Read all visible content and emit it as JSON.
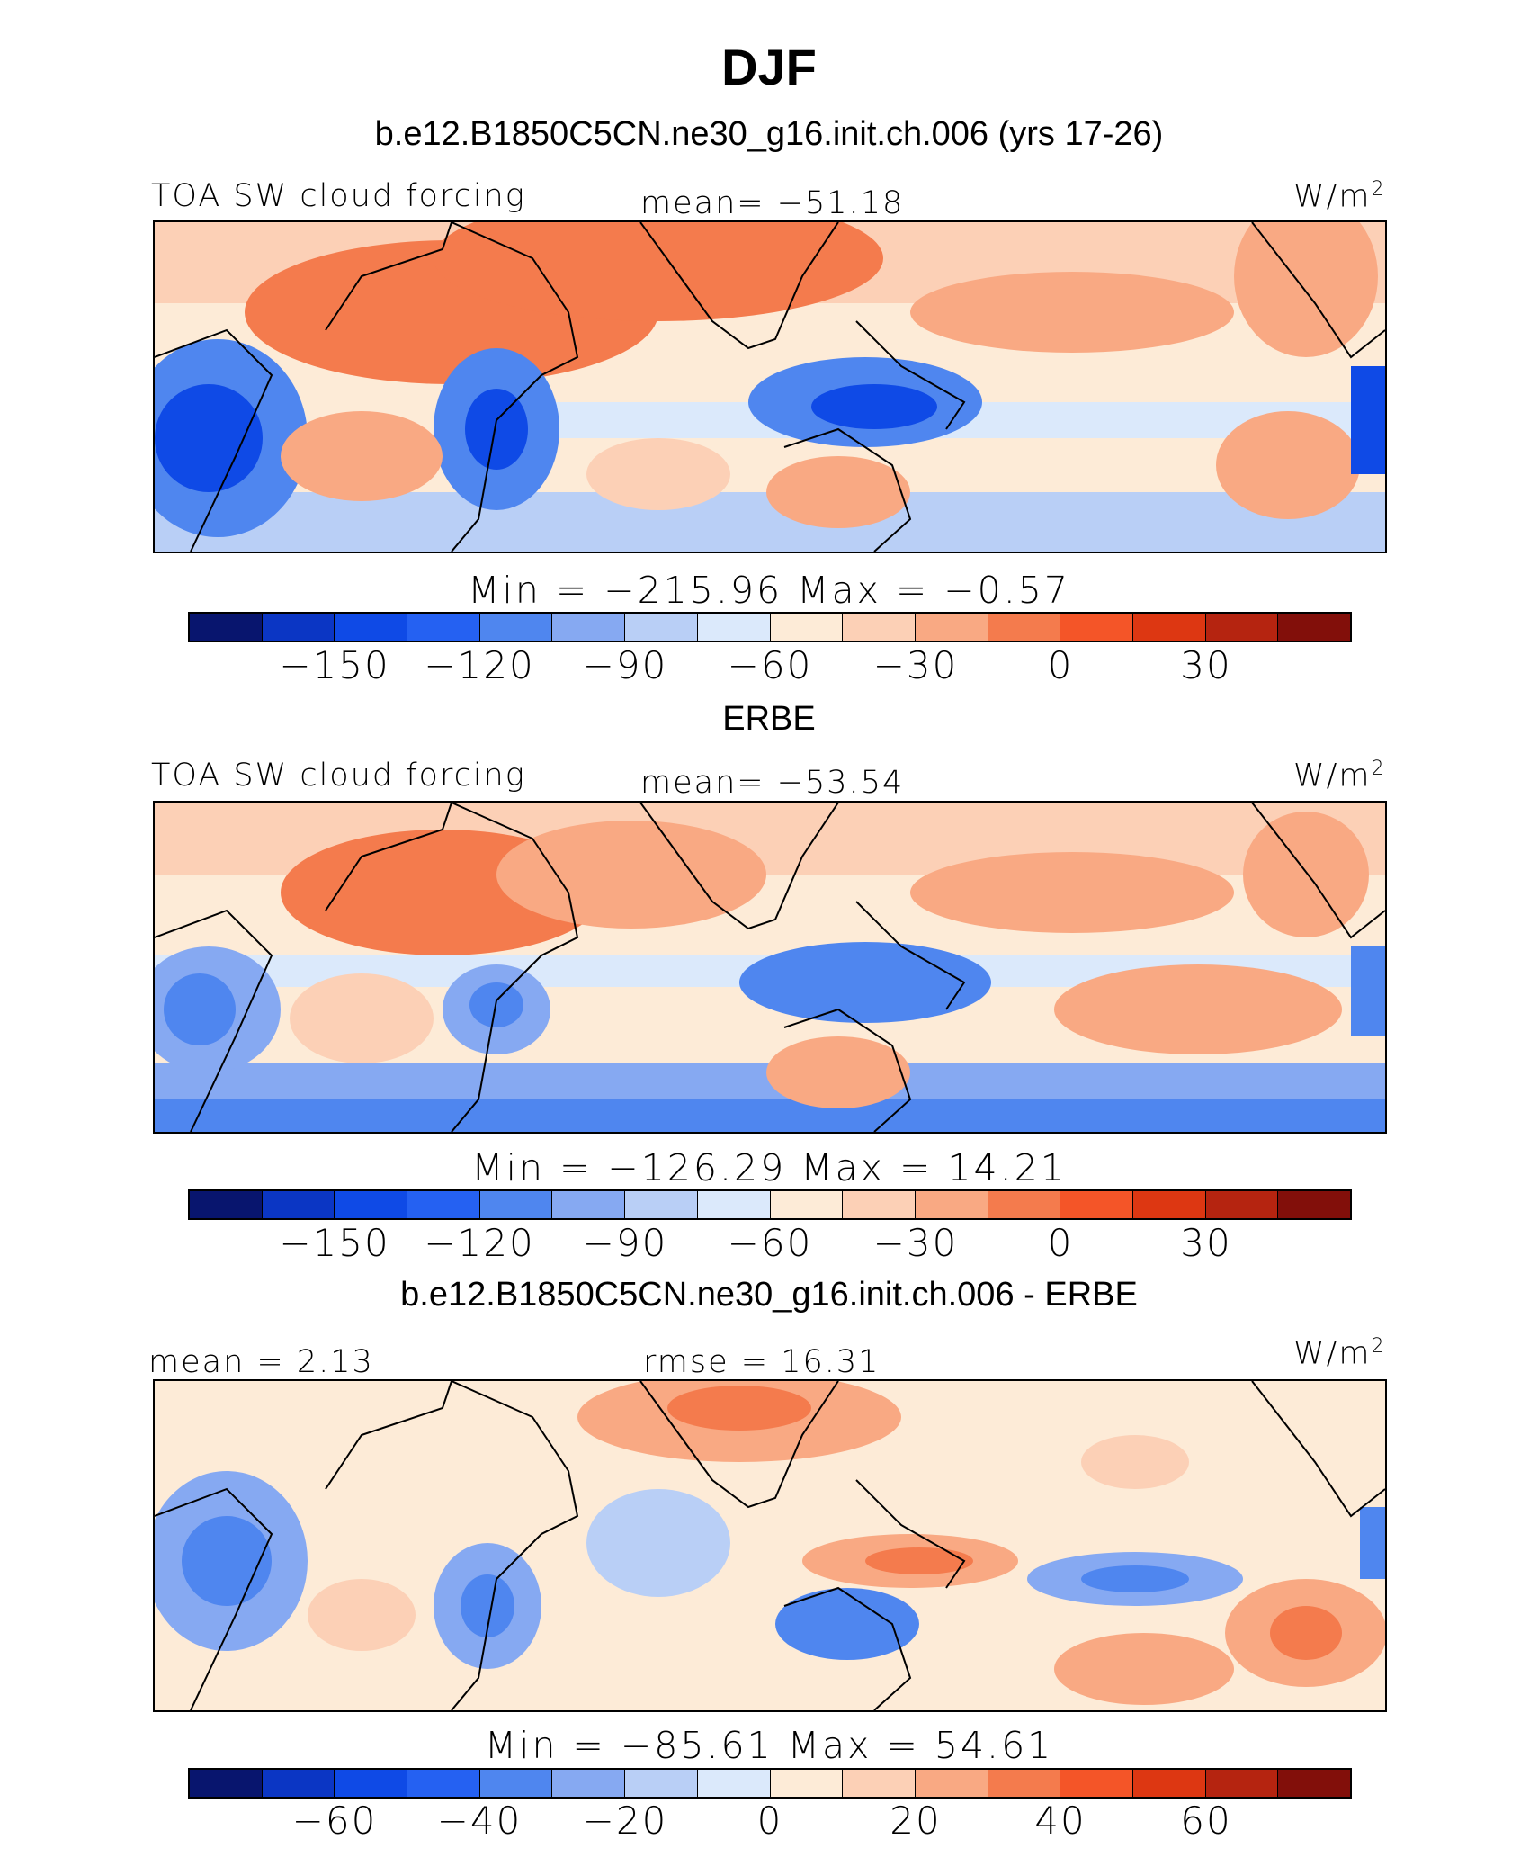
{
  "suptitle": "DJF",
  "palette": [
    "#08156e",
    "#0b36c4",
    "#0f4ae6",
    "#2561f2",
    "#4f86ef",
    "#86a9f2",
    "#b9cff6",
    "#dbe9fb",
    "#fdebd7",
    "#fcd0b6",
    "#f9a983",
    "#f47b4d",
    "#f45528",
    "#dd3712",
    "#b52410",
    "#820f0a"
  ],
  "coastline_color": "#000000",
  "panels": [
    {
      "title": "b.e12.B1850C5CN.ne30_g16.init.ch.006 (yrs 17-26)",
      "left_label": "TOA SW cloud forcing",
      "center_label": "mean= −51.18",
      "units": "W/m",
      "units_exp": "2",
      "colorbar_title": "Min  =  −215.96  Max  =   −0.57",
      "colorbar_ticks": [
        "−150",
        "−120",
        "−90",
        "−60",
        "−30",
        "0",
        "30"
      ]
    },
    {
      "title": "ERBE",
      "left_label": "TOA SW cloud forcing",
      "center_label": "mean= −53.54",
      "units": "W/m",
      "units_exp": "2",
      "colorbar_title": "Min  =  −126.29  Max  =   14.21",
      "colorbar_ticks": [
        "−150",
        "−120",
        "−90",
        "−60",
        "−30",
        "0",
        "30"
      ]
    },
    {
      "title": "b.e12.B1850C5CN.ne30_g16.init.ch.006 - ERBE",
      "left_label": "mean =    2.13",
      "center_label": "rmse =   16.31",
      "units": "W/m",
      "units_exp": "2",
      "colorbar_title": "Min  =  −85.61  Max  =   54.61",
      "colorbar_ticks": [
        "−60",
        "−40",
        "−20",
        "0",
        "20",
        "40",
        "60"
      ]
    }
  ]
}
